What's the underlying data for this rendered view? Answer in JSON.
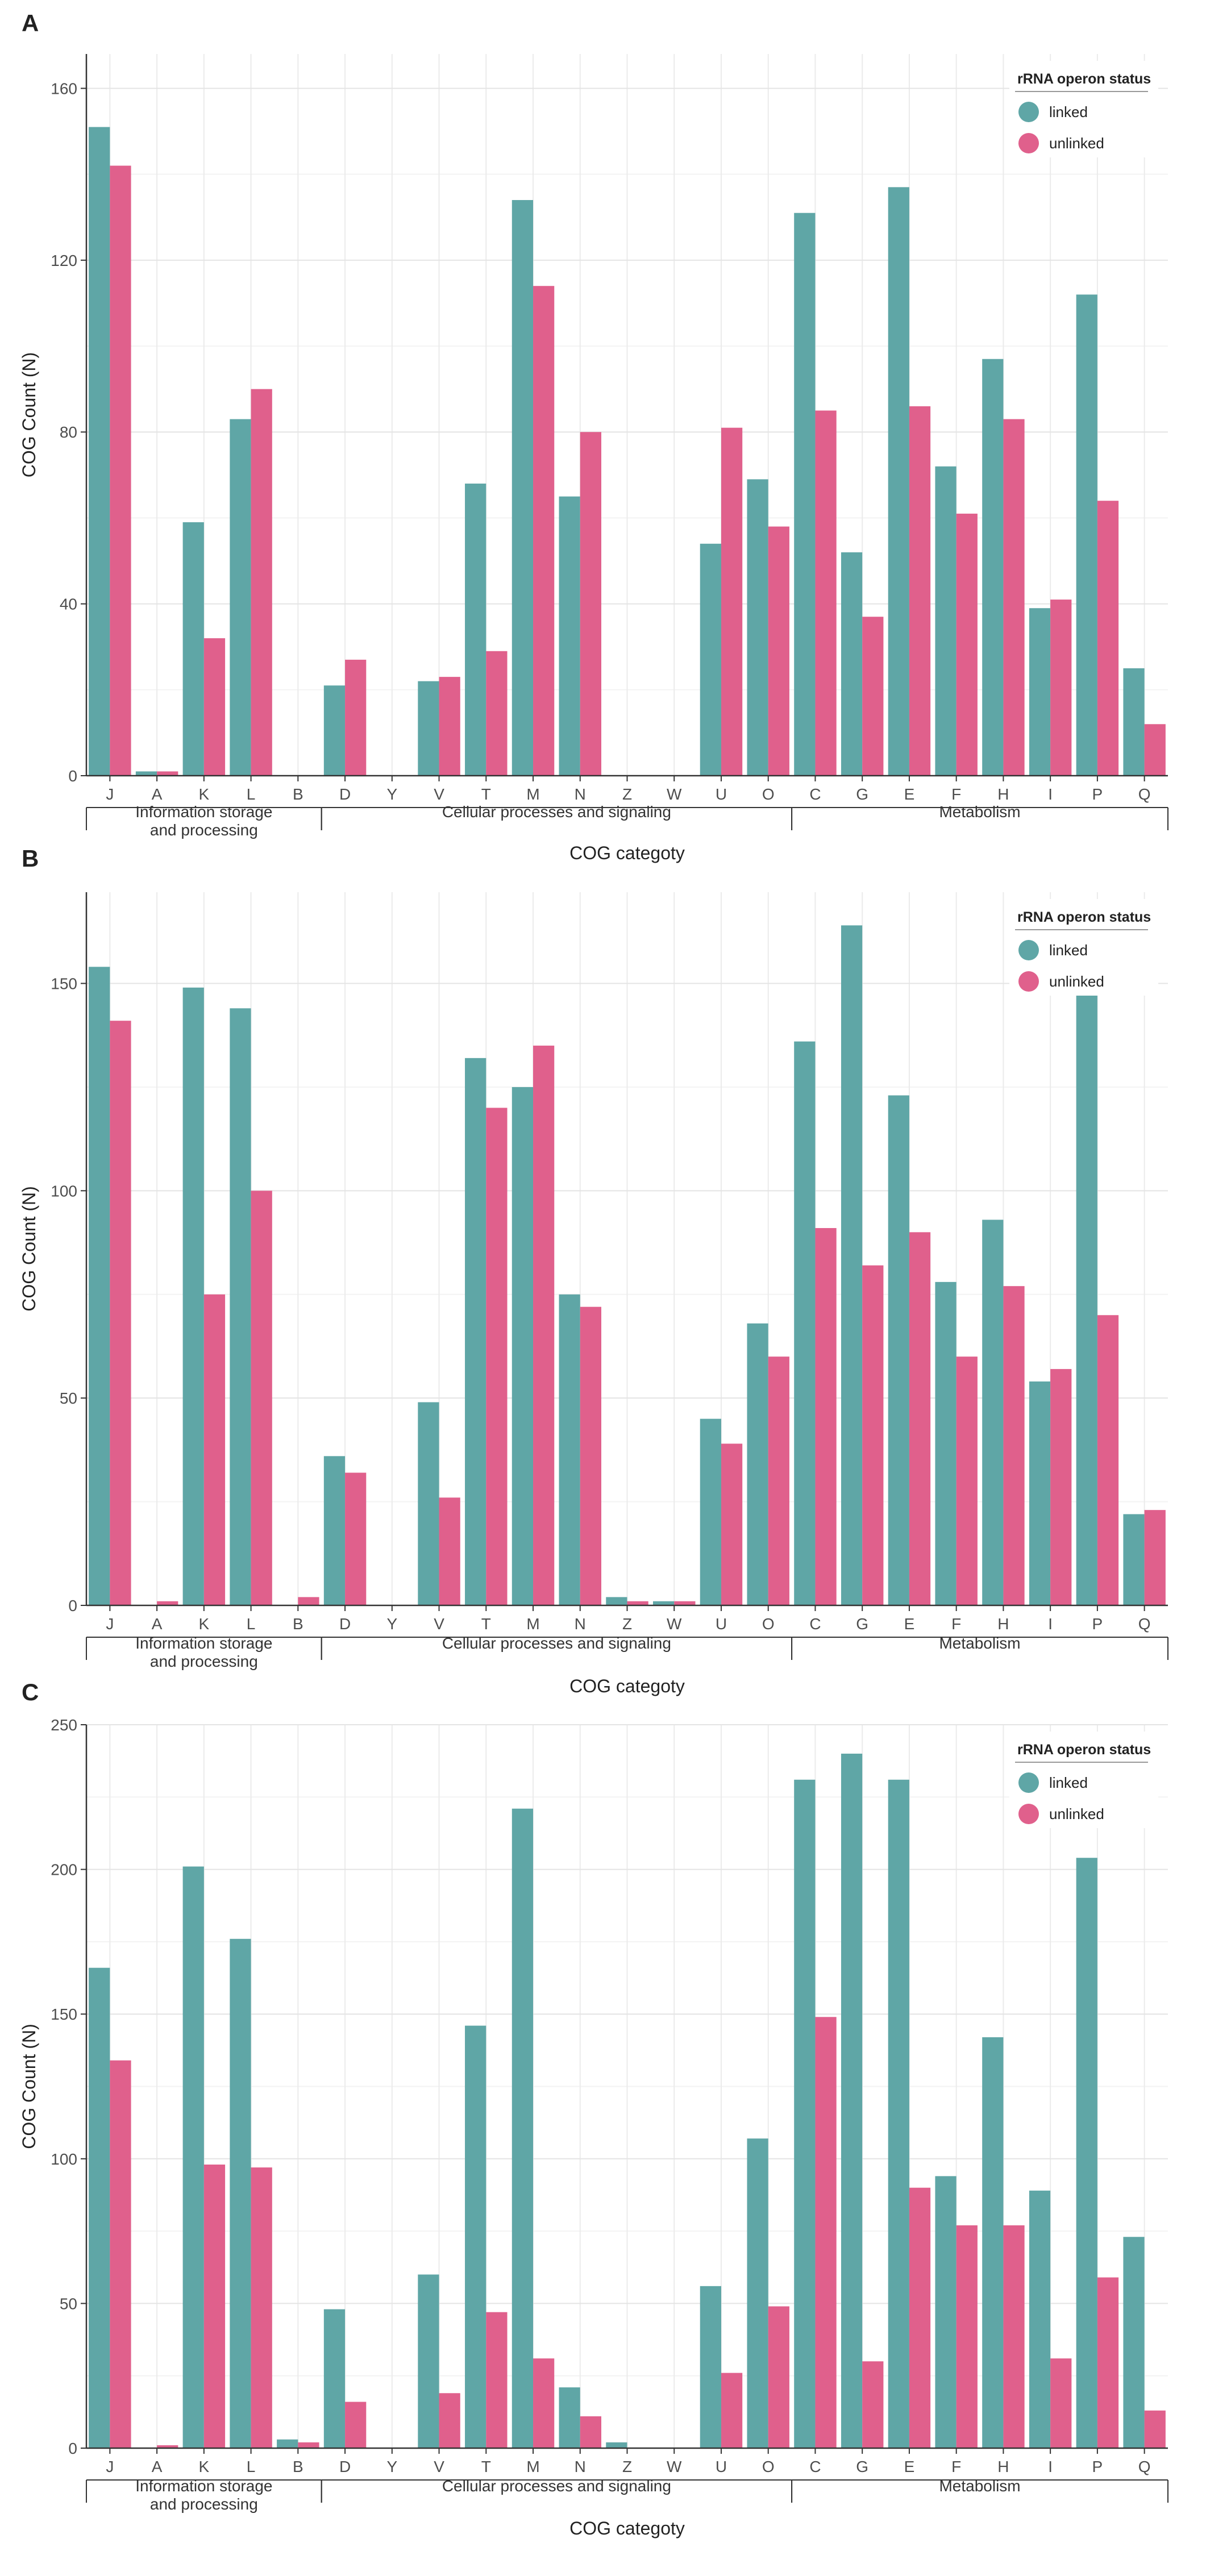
{
  "chart_data": [
    {
      "panel_label": "A",
      "type": "bar",
      "ylabel": "COG Count (N)",
      "xlabel": "COG categoty",
      "ylim": [
        0,
        168
      ],
      "yticks": [
        0,
        40,
        80,
        120,
        160
      ],
      "categories": [
        "J",
        "A",
        "K",
        "L",
        "B",
        "D",
        "Y",
        "V",
        "T",
        "M",
        "N",
        "Z",
        "W",
        "U",
        "O",
        "C",
        "G",
        "E",
        "F",
        "H",
        "I",
        "P",
        "Q"
      ],
      "groups": [
        {
          "label_lines": [
            "Information storage",
            "and processing"
          ],
          "categories": [
            "J",
            "A",
            "K",
            "L",
            "B"
          ]
        },
        {
          "label_lines": [
            "Cellular processes and signaling"
          ],
          "categories": [
            "D",
            "Y",
            "V",
            "T",
            "M",
            "N",
            "Z",
            "W",
            "U",
            "O"
          ]
        },
        {
          "label_lines": [
            "Metabolism"
          ],
          "categories": [
            "C",
            "G",
            "E",
            "F",
            "H",
            "I",
            "P",
            "Q"
          ]
        }
      ],
      "legend_title": "rRNA operon status",
      "series": [
        {
          "name": "linked",
          "color": "#5fa6a6",
          "values": [
            151,
            1,
            59,
            83,
            0,
            21,
            0,
            22,
            68,
            134,
            65,
            0,
            0,
            54,
            69,
            131,
            52,
            137,
            72,
            97,
            39,
            112,
            25
          ]
        },
        {
          "name": "unlinked",
          "color": "#e0608c",
          "values": [
            142,
            1,
            32,
            90,
            0,
            27,
            0,
            23,
            29,
            114,
            80,
            0,
            0,
            81,
            58,
            85,
            37,
            86,
            61,
            83,
            41,
            64,
            12
          ]
        }
      ]
    },
    {
      "panel_label": "B",
      "type": "bar",
      "ylabel": "COG Count (N)",
      "xlabel": "COG categoty",
      "ylim": [
        0,
        172
      ],
      "yticks": [
        0,
        50,
        100,
        150
      ],
      "categories": [
        "J",
        "A",
        "K",
        "L",
        "B",
        "D",
        "Y",
        "V",
        "T",
        "M",
        "N",
        "Z",
        "W",
        "U",
        "O",
        "C",
        "G",
        "E",
        "F",
        "H",
        "I",
        "P",
        "Q"
      ],
      "groups": [
        {
          "label_lines": [
            "Information storage",
            "and processing"
          ],
          "categories": [
            "J",
            "A",
            "K",
            "L",
            "B"
          ]
        },
        {
          "label_lines": [
            "Cellular processes and signaling"
          ],
          "categories": [
            "D",
            "Y",
            "V",
            "T",
            "M",
            "N",
            "Z",
            "W",
            "U",
            "O"
          ]
        },
        {
          "label_lines": [
            "Metabolism"
          ],
          "categories": [
            "C",
            "G",
            "E",
            "F",
            "H",
            "I",
            "P",
            "Q"
          ]
        }
      ],
      "legend_title": "rRNA operon status",
      "series": [
        {
          "name": "linked",
          "color": "#5fa6a6",
          "values": [
            154,
            0,
            149,
            144,
            0,
            36,
            0,
            49,
            132,
            125,
            75,
            2,
            1,
            45,
            68,
            136,
            164,
            123,
            78,
            93,
            54,
            151,
            22
          ]
        },
        {
          "name": "unlinked",
          "color": "#e0608c",
          "values": [
            141,
            1,
            75,
            100,
            2,
            32,
            0,
            26,
            120,
            135,
            72,
            1,
            1,
            39,
            60,
            91,
            82,
            90,
            60,
            77,
            57,
            70,
            23
          ]
        }
      ]
    },
    {
      "panel_label": "C",
      "type": "bar",
      "ylabel": "COG Count (N)",
      "xlabel": "COG categoty",
      "ylim": [
        0,
        250
      ],
      "yticks": [
        0,
        50,
        100,
        150,
        200,
        250
      ],
      "categories": [
        "J",
        "A",
        "K",
        "L",
        "B",
        "D",
        "Y",
        "V",
        "T",
        "M",
        "N",
        "Z",
        "W",
        "U",
        "O",
        "C",
        "G",
        "E",
        "F",
        "H",
        "I",
        "P",
        "Q"
      ],
      "groups": [
        {
          "label_lines": [
            "Information storage",
            "and processing"
          ],
          "categories": [
            "J",
            "A",
            "K",
            "L",
            "B"
          ]
        },
        {
          "label_lines": [
            "Cellular processes and signaling"
          ],
          "categories": [
            "D",
            "Y",
            "V",
            "T",
            "M",
            "N",
            "Z",
            "W",
            "U",
            "O"
          ]
        },
        {
          "label_lines": [
            "Metabolism"
          ],
          "categories": [
            "C",
            "G",
            "E",
            "F",
            "H",
            "I",
            "P",
            "Q"
          ]
        }
      ],
      "legend_title": "rRNA operon status",
      "series": [
        {
          "name": "linked",
          "color": "#5fa6a6",
          "values": [
            166,
            0,
            201,
            176,
            3,
            48,
            0,
            60,
            146,
            221,
            21,
            2,
            0,
            56,
            107,
            231,
            240,
            231,
            94,
            142,
            89,
            204,
            73
          ]
        },
        {
          "name": "unlinked",
          "color": "#e0608c",
          "values": [
            134,
            1,
            98,
            97,
            2,
            16,
            0,
            19,
            47,
            31,
            11,
            0,
            0,
            26,
            49,
            149,
            30,
            90,
            77,
            77,
            31,
            59,
            13
          ]
        }
      ]
    }
  ]
}
